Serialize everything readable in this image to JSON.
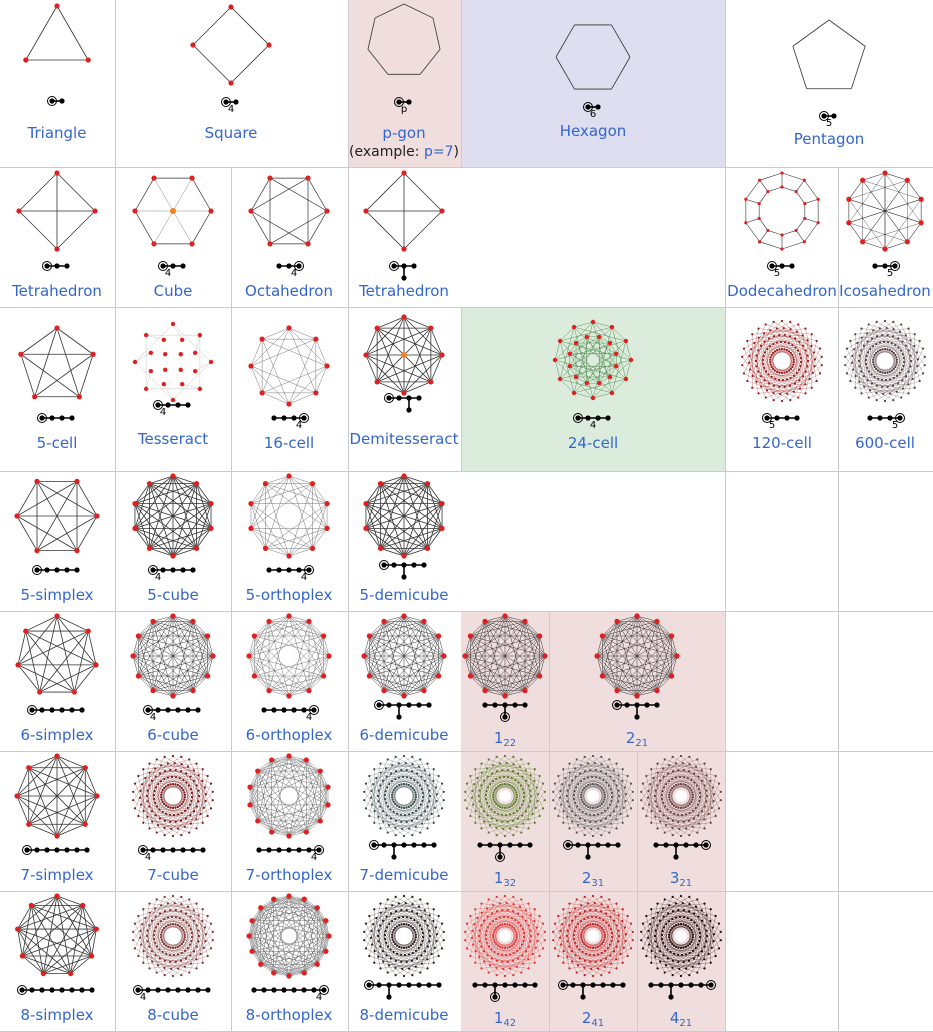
{
  "p_gon_note": {
    "prefix": "(example: ",
    "link": "p=7",
    "suffix": ")"
  },
  "items": [
    {
      "name": "Triangle",
      "type": "ring",
      "n": 3,
      "r": 36,
      "rot": -90,
      "edges": "outline",
      "dots": "red",
      "diagram": {
        "nodes": 2,
        "ring": 0,
        "mark": {
          "i": 0,
          "t": ""
        }
      },
      "href": true
    },
    {
      "name": "Square",
      "type": "ring",
      "n": 4,
      "r": 38,
      "rot": -90,
      "edges": "outline",
      "dots": "red",
      "diagram": {
        "nodes": 2,
        "ring": 0,
        "mark": {
          "i": 0,
          "t": "4"
        }
      }
    },
    {
      "name": "p-gon",
      "type": "ring",
      "n": 7,
      "r": 37,
      "rot": -90,
      "edges": "outline",
      "dots": "none",
      "diagram": {
        "nodes": 2,
        "ring": 0,
        "mark": {
          "i": 0,
          "t": "p"
        }
      }
    },
    {
      "name": "Hexagon",
      "type": "ring",
      "n": 6,
      "r": 37,
      "rot": 0,
      "edges": "outline",
      "dots": "none",
      "diagram": {
        "nodes": 2,
        "ring": 0,
        "mark": {
          "i": 0,
          "t": "6"
        }
      }
    },
    {
      "name": "Pentagon",
      "type": "ring",
      "n": 5,
      "r": 38,
      "rot": -90,
      "edges": "outline",
      "dots": "none",
      "diagram": {
        "nodes": 2,
        "ring": 0,
        "mark": {
          "i": 0,
          "t": "5"
        }
      }
    },
    {
      "name": "Tetrahedron",
      "type": "ring",
      "n": 4,
      "r": 38,
      "rot": -90,
      "edges": "complete",
      "dots": "red",
      "diagram": {
        "nodes": 3,
        "ring": 0
      }
    },
    {
      "name": "Cube",
      "type": "hexc",
      "diagram": {
        "nodes": 3,
        "ring": 0,
        "mark": {
          "i": 0,
          "t": "4"
        }
      }
    },
    {
      "name": "Octahedron",
      "type": "ring",
      "n": 6,
      "r": 38,
      "rot": 0,
      "edges": "octa",
      "dots": "red",
      "diagram": {
        "nodes": 3,
        "ring": 2,
        "mark": {
          "i": 1,
          "t": "4"
        }
      }
    },
    {
      "name": "Tetrahedron",
      "type": "ring",
      "n": 4,
      "r": 38,
      "rot": -90,
      "edges": "complete",
      "dots": "red",
      "diagram": {
        "nodes": 3,
        "ring": 0,
        "branch": true
      }
    },
    {
      "name": "Dodecahedron",
      "type": "dodeca",
      "diagram": {
        "nodes": 3,
        "ring": 0,
        "mark": {
          "i": 0,
          "t": "5"
        }
      }
    },
    {
      "name": "Icosahedron",
      "type": "ring",
      "n": 10,
      "r": 38,
      "rot": -90,
      "edges": "star",
      "dots": "red",
      "diagram": {
        "nodes": 3,
        "ring": 2,
        "mark": {
          "i": 1,
          "t": "5"
        }
      }
    },
    {
      "name": "5-cell",
      "type": "ring",
      "n": 5,
      "r": 38,
      "rot": -90,
      "edges": "complete",
      "dots": "red",
      "diagram": {
        "nodes": 4,
        "ring": 0
      }
    },
    {
      "name": "Tesseract",
      "type": "tesseract",
      "diagram": {
        "nodes": 4,
        "ring": 0,
        "mark": {
          "i": 0,
          "t": "4"
        }
      }
    },
    {
      "name": "16-cell",
      "type": "ring",
      "n": 8,
      "r": 38,
      "rot": -90,
      "edges": "cross",
      "dots": "red",
      "diagram": {
        "nodes": 4,
        "ring": 3,
        "mark": {
          "i": 2,
          "t": "4"
        }
      }
    },
    {
      "name": "Demitesseract",
      "type": "ring",
      "n": 8,
      "r": 38,
      "rot": -90,
      "edges": "complete",
      "dots": "red",
      "center": "orange",
      "diagram": {
        "nodes": 4,
        "ring": 0,
        "branch": true
      }
    },
    {
      "name": "24-cell",
      "type": "cell24",
      "diagram": {
        "nodes": 4,
        "ring": 0,
        "mark": {
          "i": 1,
          "t": "4"
        }
      }
    },
    {
      "name": "120-cell",
      "type": "dense",
      "color": "#9a1b1b",
      "diagram": {
        "nodes": 4,
        "ring": 0,
        "mark": {
          "i": 0,
          "t": "5"
        }
      }
    },
    {
      "name": "600-cell",
      "type": "dense",
      "color": "#5a4040",
      "diagram": {
        "nodes": 4,
        "ring": 3,
        "mark": {
          "i": 2,
          "t": "5"
        }
      }
    },
    {
      "name": "5-simplex",
      "type": "ring",
      "n": 6,
      "r": 40,
      "rot": 0,
      "edges": "complete",
      "dots": "red",
      "diagram": {
        "nodes": 5,
        "ring": 0
      }
    },
    {
      "name": "5-cube",
      "type": "ring",
      "n": 10,
      "r": 40,
      "rot": -90,
      "edges": "complete",
      "dots": "red",
      "diagram": {
        "nodes": 5,
        "ring": 0,
        "mark": {
          "i": 0,
          "t": "4"
        }
      }
    },
    {
      "name": "5-orthoplex",
      "type": "ring",
      "n": 10,
      "r": 40,
      "rot": -90,
      "edges": "cross",
      "dots": "red",
      "diagram": {
        "nodes": 5,
        "ring": 4,
        "mark": {
          "i": 3,
          "t": "4"
        }
      }
    },
    {
      "name": "5-demicube",
      "type": "ring",
      "n": 10,
      "r": 40,
      "rot": -90,
      "edges": "complete",
      "dots": "red",
      "diagram": {
        "nodes": 5,
        "ring": 0,
        "branch": true
      }
    },
    {
      "name": "6-simplex",
      "type": "ring",
      "n": 7,
      "r": 40,
      "rot": -90,
      "edges": "complete",
      "dots": "red",
      "diagram": {
        "nodes": 6,
        "ring": 0
      }
    },
    {
      "name": "6-cube",
      "type": "ring",
      "n": 12,
      "r": 40,
      "rot": -90,
      "edges": "complete",
      "dots": "red",
      "diagram": {
        "nodes": 6,
        "ring": 0,
        "mark": {
          "i": 0,
          "t": "4"
        }
      }
    },
    {
      "name": "6-orthoplex",
      "type": "ring",
      "n": 12,
      "r": 40,
      "rot": -90,
      "edges": "cross",
      "dots": "red",
      "diagram": {
        "nodes": 6,
        "ring": 5,
        "mark": {
          "i": 4,
          "t": "4"
        }
      }
    },
    {
      "name": "6-demicube",
      "type": "ring",
      "n": 12,
      "r": 40,
      "rot": -90,
      "edges": "complete",
      "dots": "red",
      "diagram": {
        "nodes": 6,
        "ring": 0,
        "branch": true
      }
    },
    {
      "name": "1",
      "sub": "22",
      "type": "ring",
      "n": 12,
      "r": 40,
      "rot": -90,
      "edges": "complete",
      "dots": "red",
      "diagram": {
        "nodes": 5,
        "ring": -1,
        "branch": true,
        "branchRing": true
      }
    },
    {
      "name": "2",
      "sub": "21",
      "type": "ring",
      "n": 12,
      "r": 40,
      "rot": -90,
      "edges": "complete",
      "dots": "red",
      "diagram": {
        "nodes": 5,
        "ring": 0,
        "branch": true
      }
    },
    {
      "name": "7-simplex",
      "type": "ring",
      "n": 8,
      "r": 40,
      "rot": -90,
      "edges": "complete",
      "dots": "red",
      "diagram": {
        "nodes": 7,
        "ring": 0
      }
    },
    {
      "name": "7-cube",
      "type": "dense",
      "color": "#7a1a1a",
      "diagram": {
        "nodes": 7,
        "ring": 0,
        "mark": {
          "i": 0,
          "t": "4"
        }
      }
    },
    {
      "name": "7-orthoplex",
      "type": "ring",
      "n": 14,
      "r": 40,
      "rot": -90,
      "edges": "cross",
      "dots": "red",
      "diagram": {
        "nodes": 7,
        "ring": 6,
        "mark": {
          "i": 5,
          "t": "4"
        }
      }
    },
    {
      "name": "7-demicube",
      "type": "dense",
      "color": "#3a4a4a",
      "diagram": {
        "nodes": 7,
        "ring": 0,
        "branch": true
      }
    },
    {
      "name": "1",
      "sub": "32",
      "type": "dense",
      "color": "#5a7a2a",
      "diagram": {
        "nodes": 6,
        "ring": -1,
        "branch": true,
        "branchRing": true
      }
    },
    {
      "name": "2",
      "sub": "31",
      "type": "dense",
      "color": "#555",
      "diagram": {
        "nodes": 6,
        "ring": 0,
        "branch": true
      }
    },
    {
      "name": "3",
      "sub": "21",
      "type": "dense",
      "color": "#6a4040",
      "diagram": {
        "nodes": 6,
        "ring": 5,
        "branch": true
      }
    },
    {
      "name": "8-simplex",
      "type": "ring",
      "n": 9,
      "r": 40,
      "rot": -90,
      "edges": "complete",
      "dots": "red",
      "diagram": {
        "nodes": 8,
        "ring": 0
      }
    },
    {
      "name": "8-cube",
      "type": "dense",
      "color": "#7a3030",
      "diagram": {
        "nodes": 8,
        "ring": 0,
        "mark": {
          "i": 0,
          "t": "4"
        }
      }
    },
    {
      "name": "8-orthoplex",
      "type": "ring",
      "n": 16,
      "r": 40,
      "rot": -90,
      "edges": "cross",
      "dots": "red",
      "diagram": {
        "nodes": 8,
        "ring": 7,
        "mark": {
          "i": 6,
          "t": "4"
        }
      }
    },
    {
      "name": "8-demicube",
      "type": "dense",
      "color": "#2a1a1a",
      "diagram": {
        "nodes": 8,
        "ring": 0,
        "branch": true
      }
    },
    {
      "name": "1",
      "sub": "42",
      "type": "dense",
      "color": "#e03030",
      "diagram": {
        "nodes": 7,
        "ring": -1,
        "branch": true,
        "branchRing": true
      }
    },
    {
      "name": "2",
      "sub": "41",
      "type": "dense",
      "color": "#c02020",
      "diagram": {
        "nodes": 7,
        "ring": 0,
        "branch": true
      }
    },
    {
      "name": "4",
      "sub": "21",
      "type": "dense",
      "color": "#200808",
      "diagram": {
        "nodes": 7,
        "ring": 6,
        "branch": true
      }
    }
  ]
}
